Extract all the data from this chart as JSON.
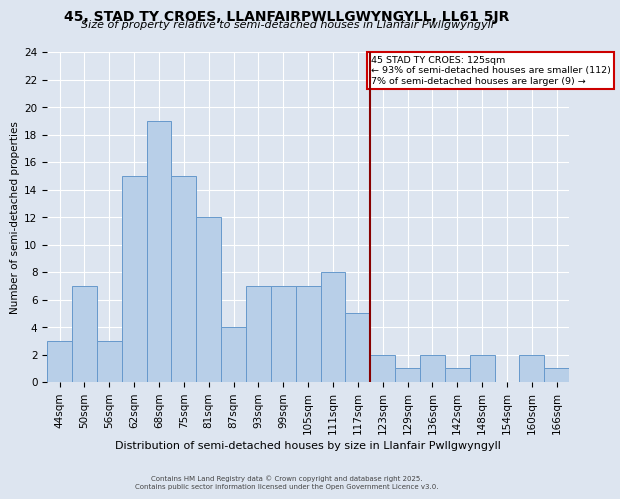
{
  "title": "45, STAD TY CROES, LLANFAIRPWLLGWYNGYLL, LL61 5JR",
  "subtitle": "Size of property relative to semi-detached houses in Llanfair Pwllgwyngyll",
  "xlabel": "Distribution of semi-detached houses by size in Llanfair Pwllgwyngyll",
  "ylabel": "Number of semi-detached properties",
  "bin_labels": [
    "44sqm",
    "50sqm",
    "56sqm",
    "62sqm",
    "68sqm",
    "75sqm",
    "81sqm",
    "87sqm",
    "93sqm",
    "99sqm",
    "105sqm",
    "111sqm",
    "117sqm",
    "123sqm",
    "129sqm",
    "136sqm",
    "142sqm",
    "148sqm",
    "154sqm",
    "160sqm",
    "166sqm"
  ],
  "bar_values": [
    3,
    7,
    3,
    15,
    19,
    15,
    12,
    4,
    7,
    7,
    7,
    8,
    5,
    2,
    1,
    2,
    1,
    2,
    0,
    2,
    1
  ],
  "bar_color": "#b8cfe8",
  "bar_edge_color": "#6699cc",
  "background_color": "#dde5f0",
  "plot_bg_color": "#dde5f0",
  "grid_color": "#ffffff",
  "vline_x_index": 13,
  "vline_color": "#880000",
  "annotation_title": "45 STAD TY CROES: 125sqm",
  "annotation_line1": "← 93% of semi-detached houses are smaller (112)",
  "annotation_line2": "7% of semi-detached houses are larger (9) →",
  "annotation_box_color": "#ffffff",
  "annotation_border_color": "#cc0000",
  "ylim": [
    0,
    24
  ],
  "yticks": [
    0,
    2,
    4,
    6,
    8,
    10,
    12,
    14,
    16,
    18,
    20,
    22,
    24
  ],
  "title_fontsize": 10,
  "subtitle_fontsize": 8,
  "xlabel_fontsize": 8,
  "ylabel_fontsize": 7.5,
  "tick_fontsize": 7.5,
  "footnote1": "Contains HM Land Registry data © Crown copyright and database right 2025.",
  "footnote2": "Contains public sector information licensed under the Open Government Licence v3.0."
}
